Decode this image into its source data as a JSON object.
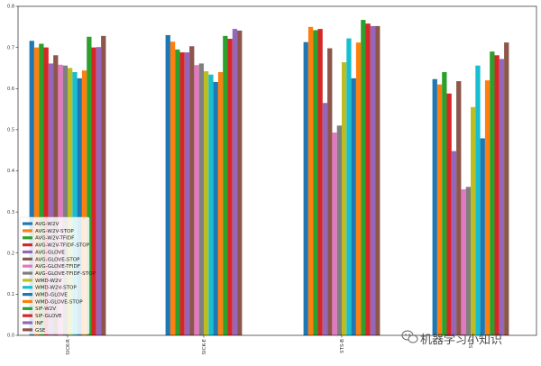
{
  "chart_data": {
    "type": "bar",
    "categories": [
      "SICK-R",
      "SICK-E",
      "STS-B",
      "STS"
    ],
    "y_ticks": [
      "0.0",
      "0.1",
      "0.2",
      "0.3",
      "0.4",
      "0.5",
      "0.6",
      "0.7",
      "0.8"
    ],
    "ylim": [
      0,
      0.8
    ],
    "grid": false,
    "legend_position": "bottom-left",
    "series": [
      {
        "name": "AVG-W2V",
        "color": "#1f77b4",
        "values": [
          0.716,
          0.73,
          0.713,
          0.623
        ]
      },
      {
        "name": "AVG-W2V-STOP",
        "color": "#ff7f0e",
        "values": [
          0.7,
          0.714,
          0.75,
          0.61
        ]
      },
      {
        "name": "AVG-W2V-TFIDF",
        "color": "#2ca02c",
        "values": [
          0.709,
          0.695,
          0.742,
          0.64
        ]
      },
      {
        "name": "AVG-W2V-TFIDF-STOP",
        "color": "#d62728",
        "values": [
          0.7,
          0.688,
          0.745,
          0.588
        ]
      },
      {
        "name": "AVG-GLOVE",
        "color": "#9467bd",
        "values": [
          0.661,
          0.688,
          0.565,
          0.448
        ]
      },
      {
        "name": "AVG-GLOVE-STOP",
        "color": "#8c564b",
        "values": [
          0.681,
          0.703,
          0.698,
          0.618
        ]
      },
      {
        "name": "AVG-GLOVE-TFIDF",
        "color": "#e377c2",
        "values": [
          0.658,
          0.657,
          0.493,
          0.355
        ]
      },
      {
        "name": "AVG-GLOVE-TFIDF-STOP",
        "color": "#7f7f7f",
        "values": [
          0.656,
          0.661,
          0.51,
          0.361
        ]
      },
      {
        "name": "WMD-W2V",
        "color": "#bcbd22",
        "values": [
          0.65,
          0.642,
          0.664,
          0.555
        ]
      },
      {
        "name": "WMD-W2V-STOP",
        "color": "#17becf",
        "values": [
          0.64,
          0.634,
          0.722,
          0.656
        ]
      },
      {
        "name": "WMD-GLOVE",
        "color": "#1f77b4",
        "values": [
          0.625,
          0.616,
          0.625,
          0.479
        ]
      },
      {
        "name": "WMD-GLOVE-STOP",
        "color": "#ff7f0e",
        "values": [
          0.644,
          0.64,
          0.712,
          0.62
        ]
      },
      {
        "name": "SIF-W2V",
        "color": "#2ca02c",
        "values": [
          0.726,
          0.728,
          0.767,
          0.69
        ]
      },
      {
        "name": "SIF-GLOVE",
        "color": "#d62728",
        "values": [
          0.7,
          0.721,
          0.758,
          0.681
        ]
      },
      {
        "name": "INF",
        "color": "#9467bd",
        "values": [
          0.701,
          0.745,
          0.752,
          0.672
        ]
      },
      {
        "name": "GSE",
        "color": "#8c564b",
        "values": [
          0.728,
          0.741,
          0.752,
          0.712
        ]
      }
    ]
  },
  "watermark": {
    "icon": "wechat-icon",
    "text": "机器学习小知识"
  }
}
